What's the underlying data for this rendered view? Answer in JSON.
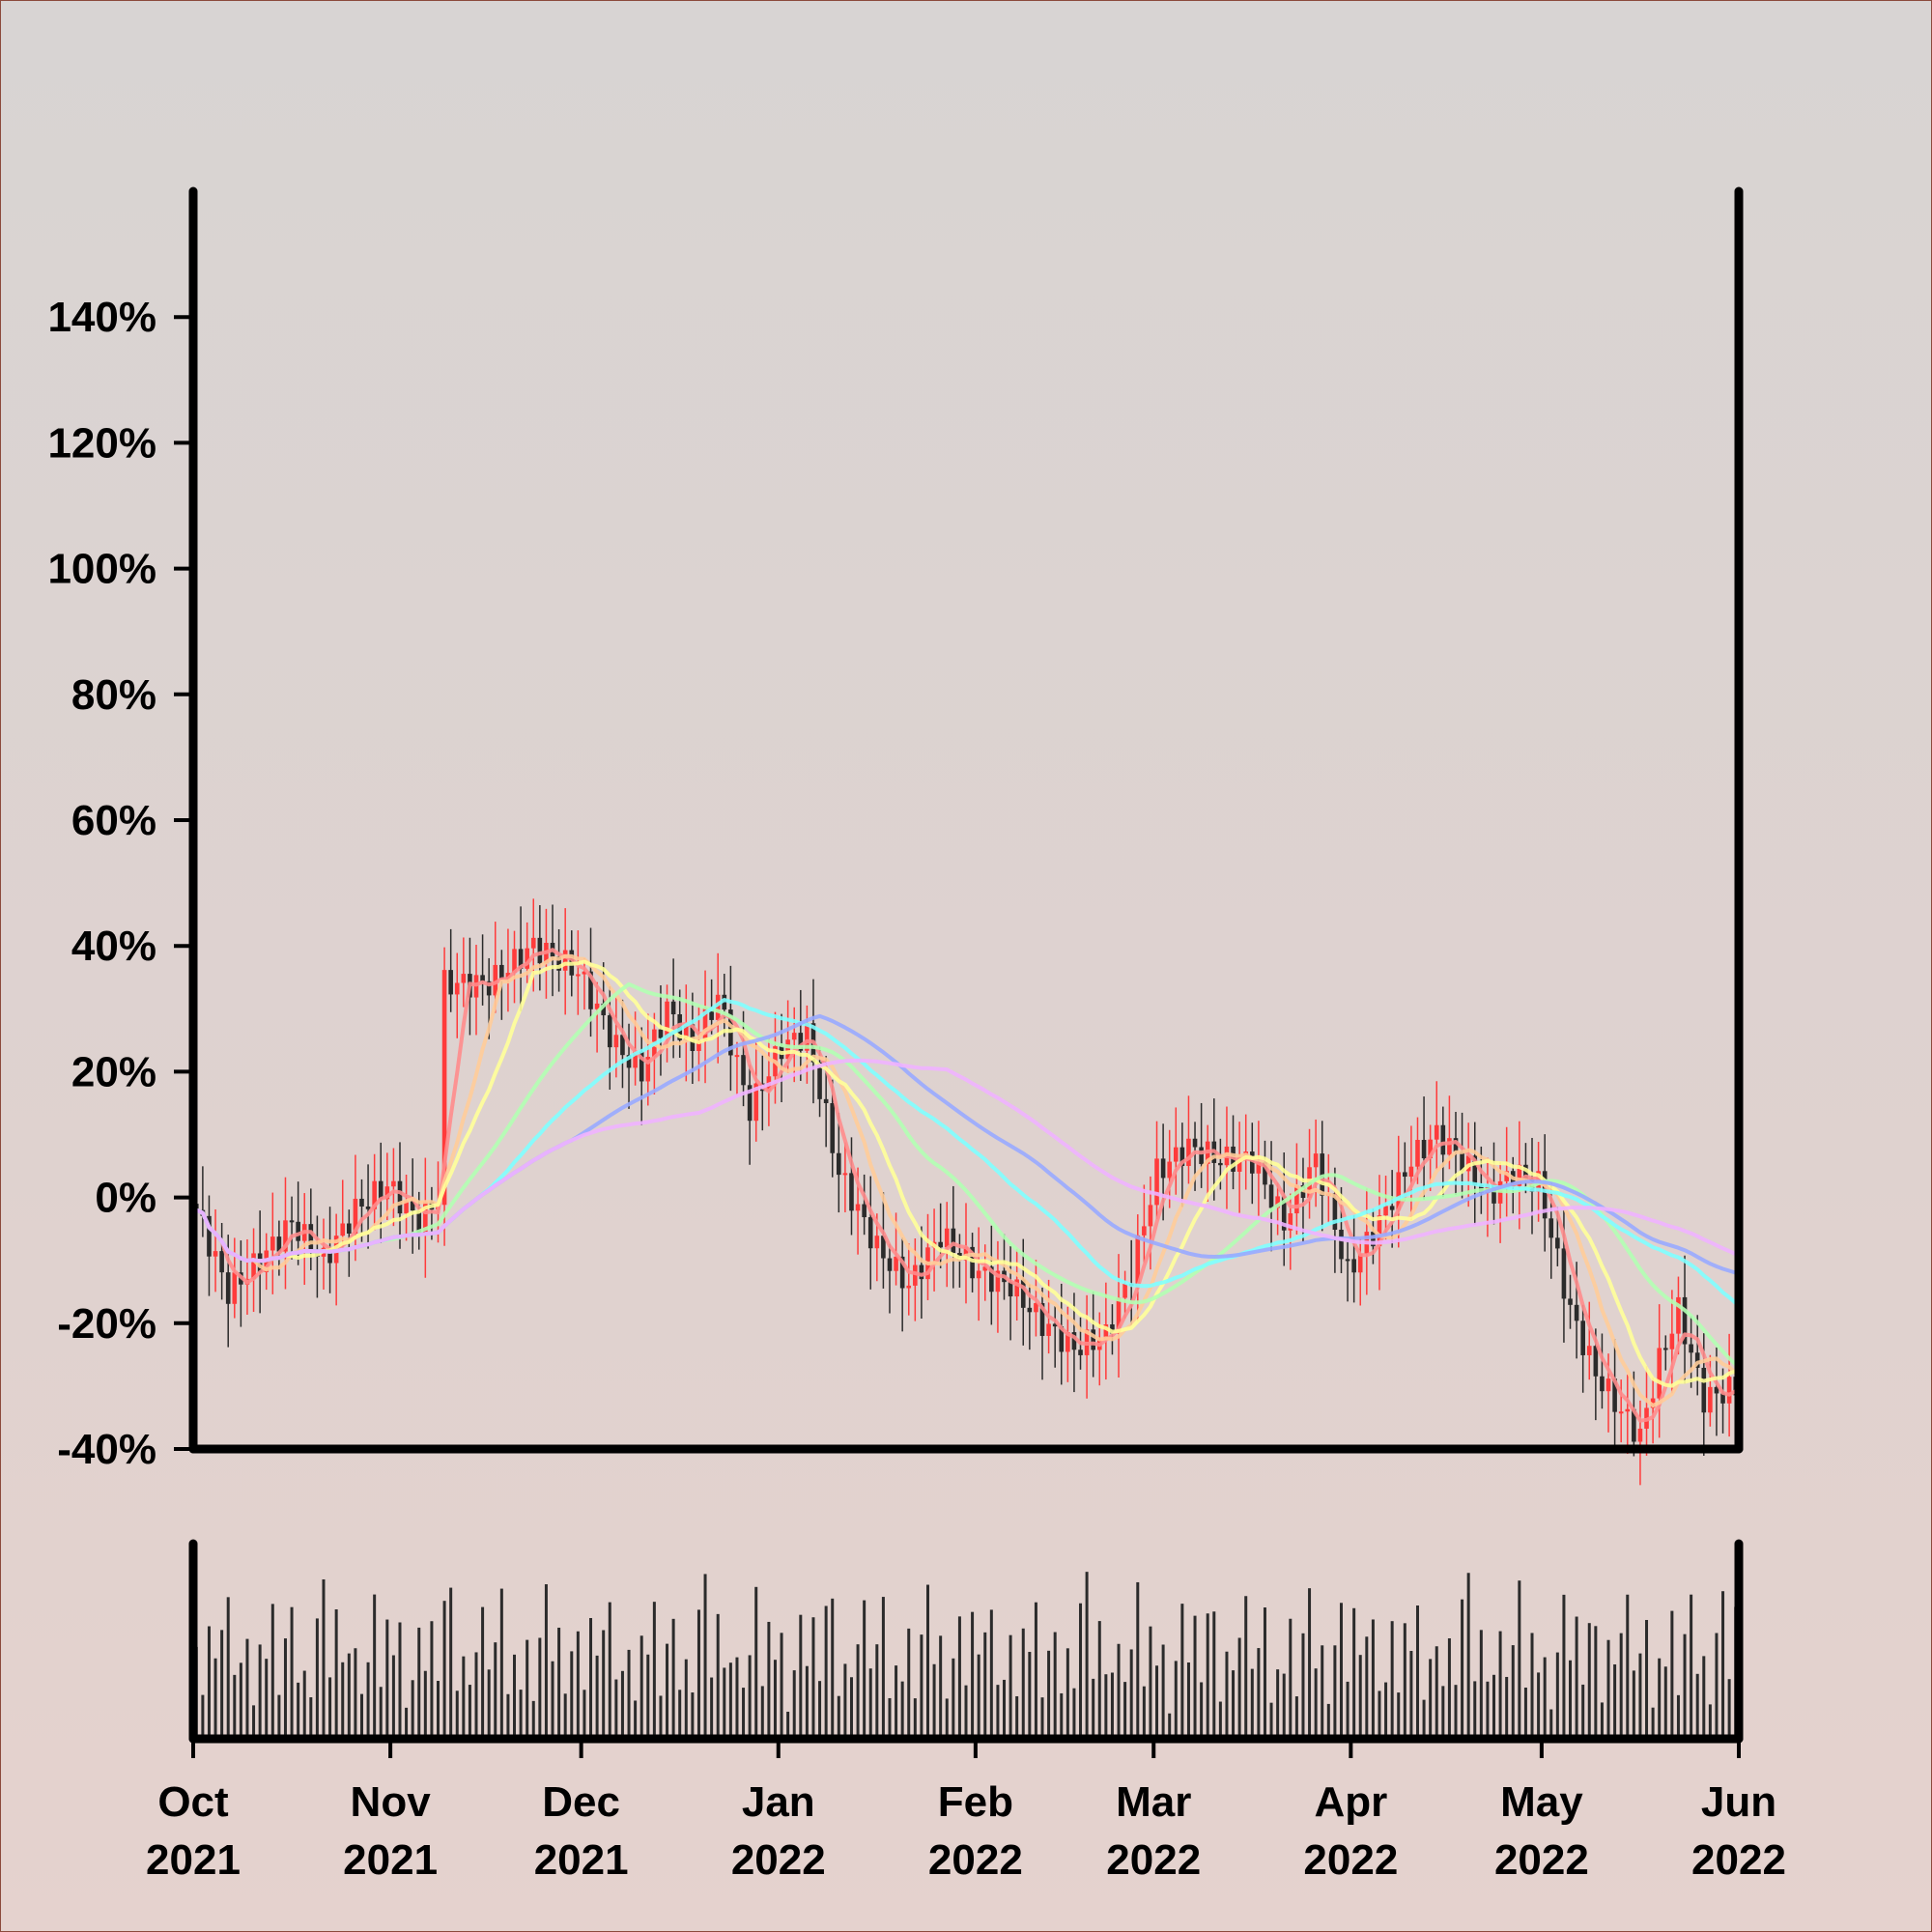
{
  "chart_data": {
    "type": "candlestick",
    "title": "",
    "xlabel": "",
    "ylabel": "",
    "y_axis": {
      "ticks": [
        {
          "value": -40,
          "label": "-40%"
        },
        {
          "value": -20,
          "label": "-20%"
        },
        {
          "value": 0,
          "label": "0%"
        },
        {
          "value": 20,
          "label": "20%"
        },
        {
          "value": 40,
          "label": "40%"
        },
        {
          "value": 60,
          "label": "60%"
        },
        {
          "value": 80,
          "label": "80%"
        },
        {
          "value": 100,
          "label": "100%"
        },
        {
          "value": 120,
          "label": "120%"
        },
        {
          "value": 140,
          "label": "140%"
        }
      ],
      "ylim": [
        -40,
        160
      ]
    },
    "x_axis": {
      "ticks": [
        {
          "date": "2021-10-01",
          "month": "Oct",
          "year": "2021"
        },
        {
          "date": "2021-11-01",
          "month": "Nov",
          "year": "2021"
        },
        {
          "date": "2021-12-01",
          "month": "Dec",
          "year": "2021"
        },
        {
          "date": "2022-01-01",
          "month": "Jan",
          "year": "2022"
        },
        {
          "date": "2022-02-01",
          "month": "Feb",
          "year": "2022"
        },
        {
          "date": "2022-03-01",
          "month": "Mar",
          "year": "2022"
        },
        {
          "date": "2022-04-01",
          "month": "Apr",
          "year": "2022"
        },
        {
          "date": "2022-05-01",
          "month": "May",
          "year": "2022"
        },
        {
          "date": "2022-06-01",
          "month": "Jun",
          "year": "2022"
        }
      ],
      "xlim": [
        "2021-10-01",
        "2022-06-01"
      ]
    },
    "price_anchors": [
      {
        "date": "2021-10-01",
        "value": -2
      },
      {
        "date": "2021-10-06",
        "value": -15
      },
      {
        "date": "2021-10-11",
        "value": -10
      },
      {
        "date": "2021-10-16",
        "value": -4
      },
      {
        "date": "2021-10-21",
        "value": -10
      },
      {
        "date": "2021-10-26",
        "value": -2
      },
      {
        "date": "2021-10-31",
        "value": 2
      },
      {
        "date": "2021-11-05",
        "value": -4
      },
      {
        "date": "2021-11-08",
        "value": 0
      },
      {
        "date": "2021-11-09",
        "value": 34
      },
      {
        "date": "2021-11-16",
        "value": 34
      },
      {
        "date": "2021-11-23",
        "value": 40
      },
      {
        "date": "2021-11-30",
        "value": 36
      },
      {
        "date": "2021-12-06",
        "value": 24
      },
      {
        "date": "2021-12-10",
        "value": 20
      },
      {
        "date": "2021-12-14",
        "value": 30
      },
      {
        "date": "2021-12-18",
        "value": 24
      },
      {
        "date": "2021-12-22",
        "value": 32
      },
      {
        "date": "2021-12-27",
        "value": 14
      },
      {
        "date": "2022-01-01",
        "value": 24
      },
      {
        "date": "2022-01-05",
        "value": 26
      },
      {
        "date": "2022-01-10",
        "value": 4
      },
      {
        "date": "2022-01-16",
        "value": -8
      },
      {
        "date": "2022-01-21",
        "value": -14
      },
      {
        "date": "2022-01-26",
        "value": -6
      },
      {
        "date": "2022-02-01",
        "value": -12
      },
      {
        "date": "2022-02-06",
        "value": -14
      },
      {
        "date": "2022-02-11",
        "value": -20
      },
      {
        "date": "2022-02-16",
        "value": -24
      },
      {
        "date": "2022-02-21",
        "value": -22
      },
      {
        "date": "2022-02-25",
        "value": -12
      },
      {
        "date": "2022-03-01",
        "value": 4
      },
      {
        "date": "2022-03-06",
        "value": 8
      },
      {
        "date": "2022-03-11",
        "value": 6
      },
      {
        "date": "2022-03-16",
        "value": 6
      },
      {
        "date": "2022-03-21",
        "value": -4
      },
      {
        "date": "2022-03-26",
        "value": 6
      },
      {
        "date": "2022-03-31",
        "value": -12
      },
      {
        "date": "2022-04-05",
        "value": -4
      },
      {
        "date": "2022-04-10",
        "value": 6
      },
      {
        "date": "2022-04-14",
        "value": 10
      },
      {
        "date": "2022-04-18",
        "value": 6
      },
      {
        "date": "2022-04-22",
        "value": 0
      },
      {
        "date": "2022-04-26",
        "value": 4
      },
      {
        "date": "2022-04-30",
        "value": 2
      },
      {
        "date": "2022-05-05",
        "value": -18
      },
      {
        "date": "2022-05-09",
        "value": -28
      },
      {
        "date": "2022-05-13",
        "value": -34
      },
      {
        "date": "2022-05-16",
        "value": -38
      },
      {
        "date": "2022-05-19",
        "value": -26
      },
      {
        "date": "2022-05-22",
        "value": -18
      },
      {
        "date": "2022-05-26",
        "value": -32
      },
      {
        "date": "2022-06-01",
        "value": -30
      }
    ],
    "volume_pattern": [
      0.95,
      0.35,
      0.75,
      0.48,
      0.62,
      0.82,
      0.4,
      0.55,
      0.9,
      0.3,
      0.68,
      0.5,
      0.78,
      0.25,
      0.6,
      0.88,
      0.45,
      0.7,
      0.33,
      0.8
    ],
    "series": [
      {
        "period": 5,
        "color": "#ff8c8c"
      },
      {
        "period": 10,
        "color": "#ffcc99"
      },
      {
        "period": 15,
        "color": "#ffff99"
      },
      {
        "period": 30,
        "color": "#b3ffb3"
      },
      {
        "period": 45,
        "color": "#80ffff"
      },
      {
        "period": 60,
        "color": "#99aaff"
      },
      {
        "period": 80,
        "color": "#f0b3ff"
      }
    ],
    "colors": {
      "up": "#ff3b3b",
      "down": "#2b2b2b",
      "axis": "#000000",
      "volume": "#2b2b2b"
    },
    "grid": false,
    "legend": "none"
  }
}
